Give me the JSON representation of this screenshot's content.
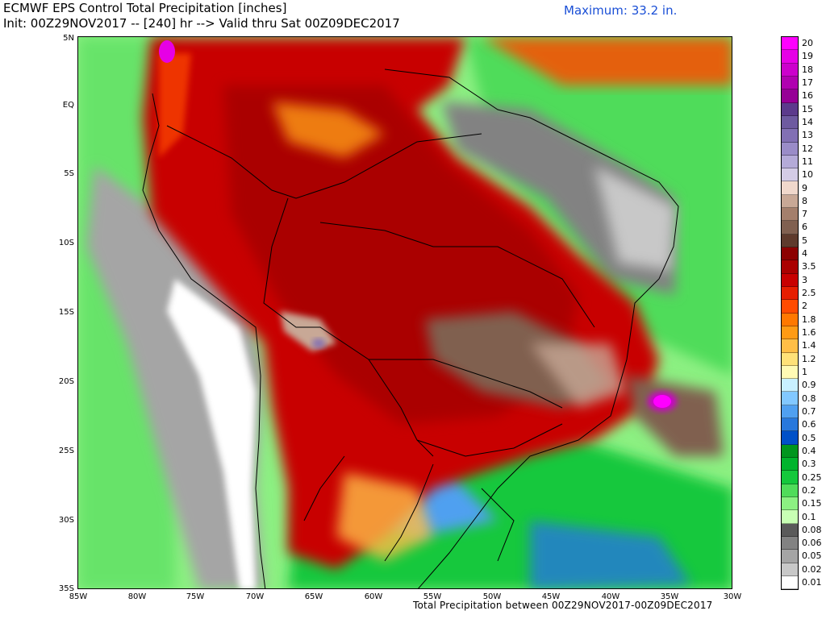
{
  "header": {
    "title": "ECMWF EPS Control Total Precipitation [inches]",
    "subtitle": "Init: 00Z29NOV2017 -- [240] hr --> Valid thru Sat 00Z09DEC2017",
    "maximum": "Maximum: 33.2 in."
  },
  "map": {
    "region": "South America",
    "lat_labels": [
      "5N",
      "EQ",
      "5S",
      "10S",
      "15S",
      "20S",
      "25S",
      "30S",
      "35S"
    ],
    "lon_labels": [
      "85W",
      "80W",
      "75W",
      "70W",
      "65W",
      "60W",
      "55W",
      "50W",
      "45W",
      "40W",
      "35W",
      "30W"
    ]
  },
  "footer": "Total Precipitation between 00Z29NOV2017-00Z09DEC2017",
  "legend": {
    "labels": [
      "20",
      "19",
      "18",
      "17",
      "16",
      "15",
      "14",
      "13",
      "12",
      "11",
      "10",
      "9",
      "8",
      "7",
      "6",
      "5",
      "4",
      "3.5",
      "3",
      "2.5",
      "2",
      "1.8",
      "1.6",
      "1.4",
      "1.2",
      "1",
      "0.9",
      "0.8",
      "0.7",
      "0.6",
      "0.5",
      "0.4",
      "0.3",
      "0.25",
      "0.2",
      "0.15",
      "0.1",
      "0.08",
      "0.06",
      "0.05",
      "0.02",
      "0.01"
    ],
    "colors": [
      "#ff00ff",
      "#e600e6",
      "#cc00cc",
      "#b000b0",
      "#960096",
      "#5c3a8c",
      "#6e5aa0",
      "#8270b4",
      "#9a8cc8",
      "#b4aad8",
      "#d4cce6",
      "#f0d8cc",
      "#c8a896",
      "#a47f6c",
      "#806050",
      "#5e3a2c",
      "#8c0000",
      "#aa0000",
      "#c80000",
      "#e61e00",
      "#ff4b00",
      "#ff7800",
      "#ff9b14",
      "#ffbe46",
      "#ffe178",
      "#fffab4",
      "#c8f0ff",
      "#82c8ff",
      "#50a0f0",
      "#2878dc",
      "#0050c8",
      "#00961e",
      "#00b42d",
      "#14c83c",
      "#50dc5a",
      "#8cf082",
      "#c8ffb4",
      "#5a5a5a",
      "#828282",
      "#a5a5a5",
      "#c8c8c8",
      "#ffffff"
    ]
  }
}
